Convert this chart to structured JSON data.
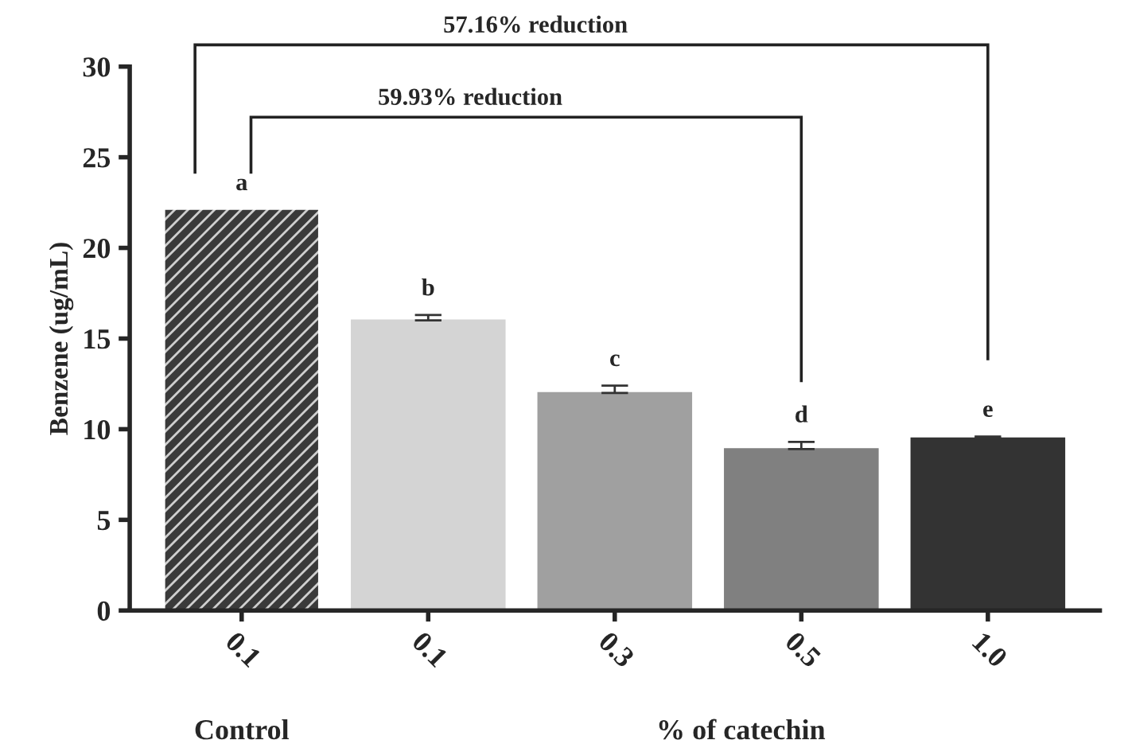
{
  "chart_data": {
    "type": "bar",
    "categories": [
      "0.1",
      "0.1",
      "0.3",
      "0.5",
      "1.0"
    ],
    "values": [
      22.1,
      16.0,
      12.0,
      8.9,
      9.5
    ],
    "colors": [
      "#3a3a3a",
      "#d4d4d4",
      "#a0a0a0",
      "#808080",
      "#333333"
    ],
    "errors": [
      null,
      [
        16.0,
        16.3
      ],
      [
        12.0,
        12.4
      ],
      [
        8.9,
        9.3
      ],
      [
        9.5,
        9.6
      ]
    ],
    "value_labels": [
      "a",
      "b",
      "c",
      "d",
      "e"
    ],
    "ylabel": "Benzene (ug/mL)",
    "xlabel": "% of catechin",
    "annotations": [
      "57.16% reduction",
      "59.93% reduction",
      "Control"
    ],
    "ylim": [
      0,
      30
    ],
    "yticks": [
      0,
      5,
      10,
      15,
      20,
      25,
      30
    ],
    "grid": false
  }
}
